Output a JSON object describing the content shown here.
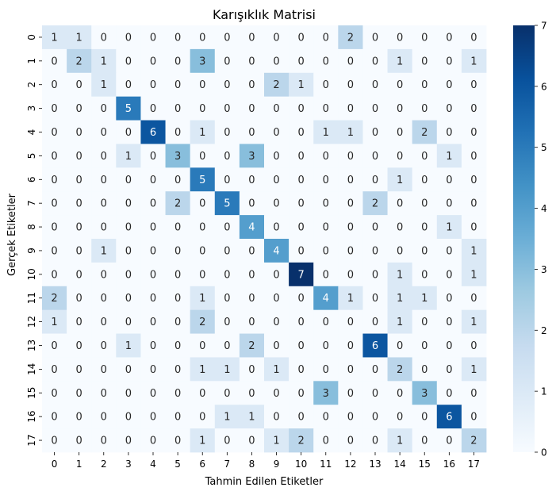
{
  "chart_data": {
    "type": "heatmap",
    "title": "Karışıklık Matrisi",
    "xlabel": "Tahmin Edilen Etiketler",
    "ylabel": "Gerçek Etiketler",
    "x_categories": [
      "0",
      "1",
      "2",
      "3",
      "4",
      "5",
      "6",
      "7",
      "8",
      "9",
      "10",
      "11",
      "12",
      "13",
      "14",
      "15",
      "16",
      "17"
    ],
    "y_categories": [
      "0",
      "1",
      "2",
      "3",
      "4",
      "5",
      "6",
      "7",
      "8",
      "9",
      "10",
      "11",
      "12",
      "13",
      "14",
      "15",
      "16",
      "17"
    ],
    "values": [
      [
        1,
        1,
        0,
        0,
        0,
        0,
        0,
        0,
        0,
        0,
        0,
        0,
        2,
        0,
        0,
        0,
        0,
        0
      ],
      [
        0,
        2,
        1,
        0,
        0,
        0,
        3,
        0,
        0,
        0,
        0,
        0,
        0,
        0,
        1,
        0,
        0,
        1
      ],
      [
        0,
        0,
        1,
        0,
        0,
        0,
        0,
        0,
        0,
        2,
        1,
        0,
        0,
        0,
        0,
        0,
        0,
        0
      ],
      [
        0,
        0,
        0,
        5,
        0,
        0,
        0,
        0,
        0,
        0,
        0,
        0,
        0,
        0,
        0,
        0,
        0,
        0
      ],
      [
        0,
        0,
        0,
        0,
        6,
        0,
        1,
        0,
        0,
        0,
        0,
        1,
        1,
        0,
        0,
        2,
        0,
        0
      ],
      [
        0,
        0,
        0,
        1,
        0,
        3,
        0,
        0,
        3,
        0,
        0,
        0,
        0,
        0,
        0,
        0,
        1,
        0
      ],
      [
        0,
        0,
        0,
        0,
        0,
        0,
        5,
        0,
        0,
        0,
        0,
        0,
        0,
        0,
        1,
        0,
        0,
        0
      ],
      [
        0,
        0,
        0,
        0,
        0,
        2,
        0,
        5,
        0,
        0,
        0,
        0,
        0,
        2,
        0,
        0,
        0,
        0
      ],
      [
        0,
        0,
        0,
        0,
        0,
        0,
        0,
        0,
        4,
        0,
        0,
        0,
        0,
        0,
        0,
        0,
        1,
        0
      ],
      [
        0,
        0,
        1,
        0,
        0,
        0,
        0,
        0,
        0,
        4,
        0,
        0,
        0,
        0,
        0,
        0,
        0,
        1
      ],
      [
        0,
        0,
        0,
        0,
        0,
        0,
        0,
        0,
        0,
        0,
        7,
        0,
        0,
        0,
        1,
        0,
        0,
        1
      ],
      [
        2,
        0,
        0,
        0,
        0,
        0,
        1,
        0,
        0,
        0,
        0,
        4,
        1,
        0,
        1,
        1,
        0,
        0
      ],
      [
        1,
        0,
        0,
        0,
        0,
        0,
        2,
        0,
        0,
        0,
        0,
        0,
        0,
        0,
        1,
        0,
        0,
        1
      ],
      [
        0,
        0,
        0,
        1,
        0,
        0,
        0,
        0,
        2,
        0,
        0,
        0,
        0,
        6,
        0,
        0,
        0,
        0
      ],
      [
        0,
        0,
        0,
        0,
        0,
        0,
        1,
        1,
        0,
        1,
        0,
        0,
        0,
        0,
        2,
        0,
        0,
        1
      ],
      [
        0,
        0,
        0,
        0,
        0,
        0,
        0,
        0,
        0,
        0,
        0,
        3,
        0,
        0,
        0,
        3,
        0,
        0
      ],
      [
        0,
        0,
        0,
        0,
        0,
        0,
        0,
        1,
        1,
        0,
        0,
        0,
        0,
        0,
        0,
        0,
        6,
        0
      ],
      [
        0,
        0,
        0,
        0,
        0,
        0,
        1,
        0,
        0,
        1,
        2,
        0,
        0,
        0,
        1,
        0,
        0,
        2
      ]
    ],
    "vmin": 0,
    "vmax": 7,
    "colorbar_ticks": [
      0,
      1,
      2,
      3,
      4,
      5,
      6,
      7
    ],
    "colormap": "Blues",
    "annotations": true
  }
}
